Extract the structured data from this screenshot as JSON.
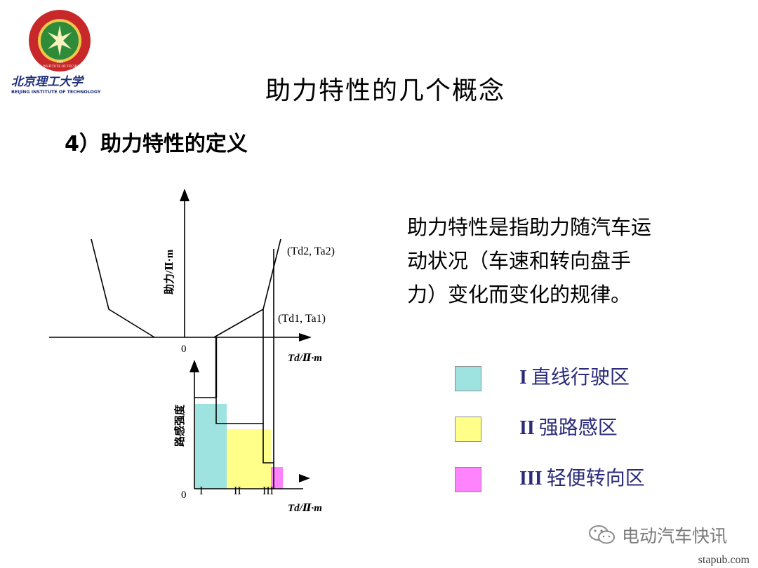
{
  "logo": {
    "name_cn": "北京理工大学",
    "name_en": "BEIJING INSTITUTE OF TECHNOLOGY",
    "badge_en": "BEIJING INSTITUTE OF TECHNOLOGY",
    "year": "1940"
  },
  "title": "助力特性的几个概念",
  "subtitle": "4）助力特性的定义",
  "diagram": {
    "top_ylabel": "助力/Ⅱ·m",
    "top_xlabel": "Td/Ⅱ·m",
    "bottom_ylabel": "路感强度",
    "bottom_xlabel": "Td/Ⅱ·m",
    "origin_top": "0",
    "origin_bottom": "0",
    "point1": "(Td1, Ta1)",
    "point2": "(Td2, Ta2)",
    "zone_labels": [
      "I",
      "II",
      "III"
    ]
  },
  "description": [
    "助力特性是指助力随汽车运",
    "动状况（车速和转向盘手",
    "力）变化而变化的规律。"
  ],
  "legend": [
    {
      "roman": "I",
      "label": "直线行驶区",
      "color": "#9ee3e0"
    },
    {
      "roman": "II",
      "label": "强路感区",
      "color": "#ffff8a"
    },
    {
      "roman": "III",
      "label": "轻便转向区",
      "color": "#ff82ff"
    }
  ],
  "watermark": "电动汽车快讯",
  "site": "stapub.com"
}
